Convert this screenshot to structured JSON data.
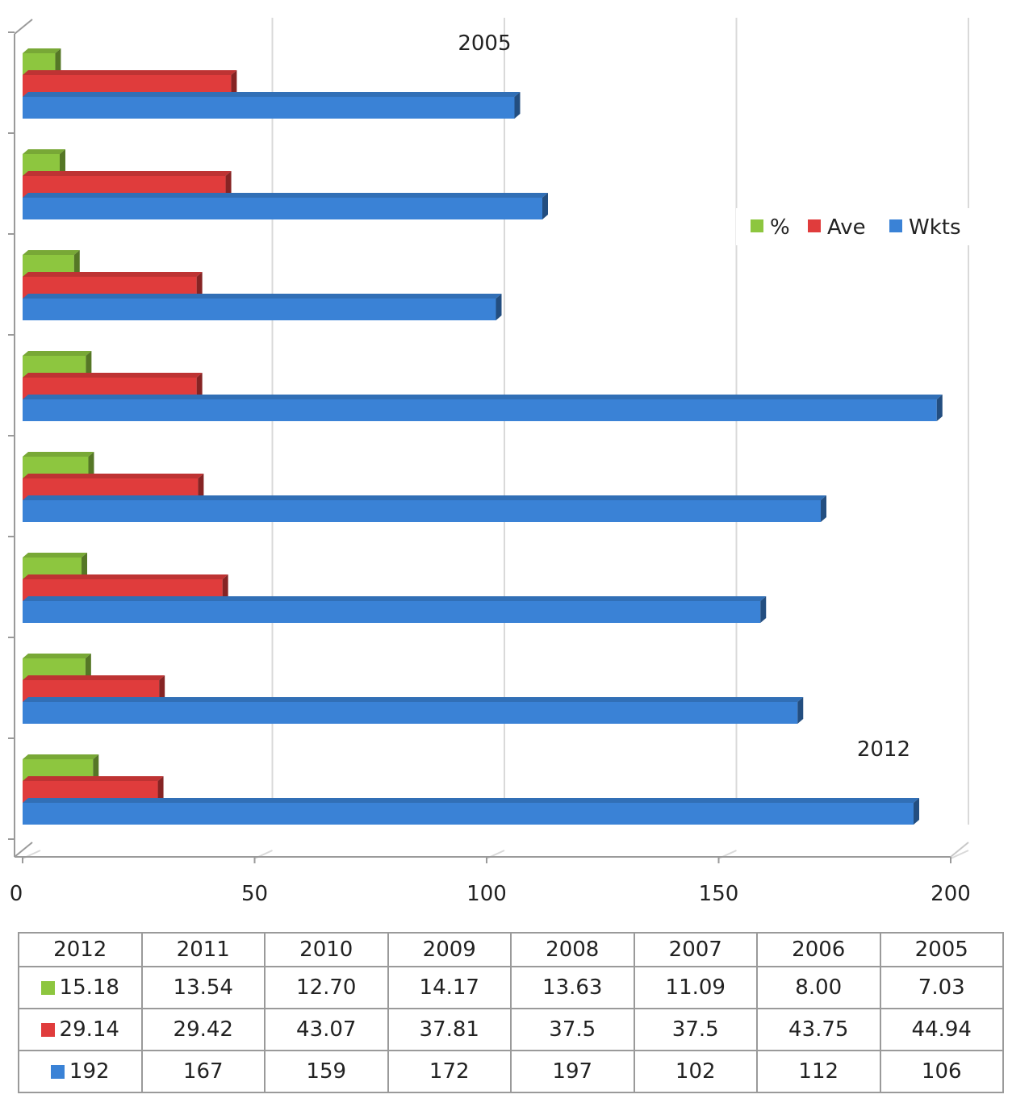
{
  "chart_data": {
    "type": "bar",
    "orientation": "horizontal",
    "style": "3d",
    "categories": [
      "2012",
      "2011",
      "2010",
      "2009",
      "2008",
      "2007",
      "2006",
      "2005"
    ],
    "series": [
      {
        "name": "%",
        "color": "#8dc63f",
        "values": [
          15.18,
          13.54,
          12.7,
          14.17,
          13.63,
          11.09,
          8.0,
          7.03
        ],
        "table_values": [
          "15.18",
          "13.54",
          "12.70",
          "14.17",
          "13.63",
          "11.09",
          "8.00",
          "7.03"
        ]
      },
      {
        "name": "Ave",
        "color": "#e03c3c",
        "values": [
          29.14,
          29.42,
          43.07,
          37.81,
          37.5,
          37.5,
          43.75,
          44.94
        ],
        "table_values": [
          "29.14",
          "29.42",
          "43.07",
          "37.81",
          "37.5",
          "37.5",
          "43.75",
          "44.94"
        ]
      },
      {
        "name": "Wkts",
        "color": "#3a82d6",
        "values": [
          192,
          167,
          159,
          172,
          197,
          102,
          112,
          106
        ],
        "table_values": [
          "192",
          "167",
          "159",
          "172",
          "197",
          "102",
          "112",
          "106"
        ]
      }
    ],
    "xlim": [
      0,
      200
    ],
    "x_ticks": [
      "0",
      "50",
      "100",
      "150",
      "200"
    ],
    "grid": true,
    "legend_position": "right",
    "annotations": [
      {
        "text": "2005",
        "category": "2005"
      },
      {
        "text": "2012",
        "category": "2012"
      }
    ],
    "data_table": true
  }
}
